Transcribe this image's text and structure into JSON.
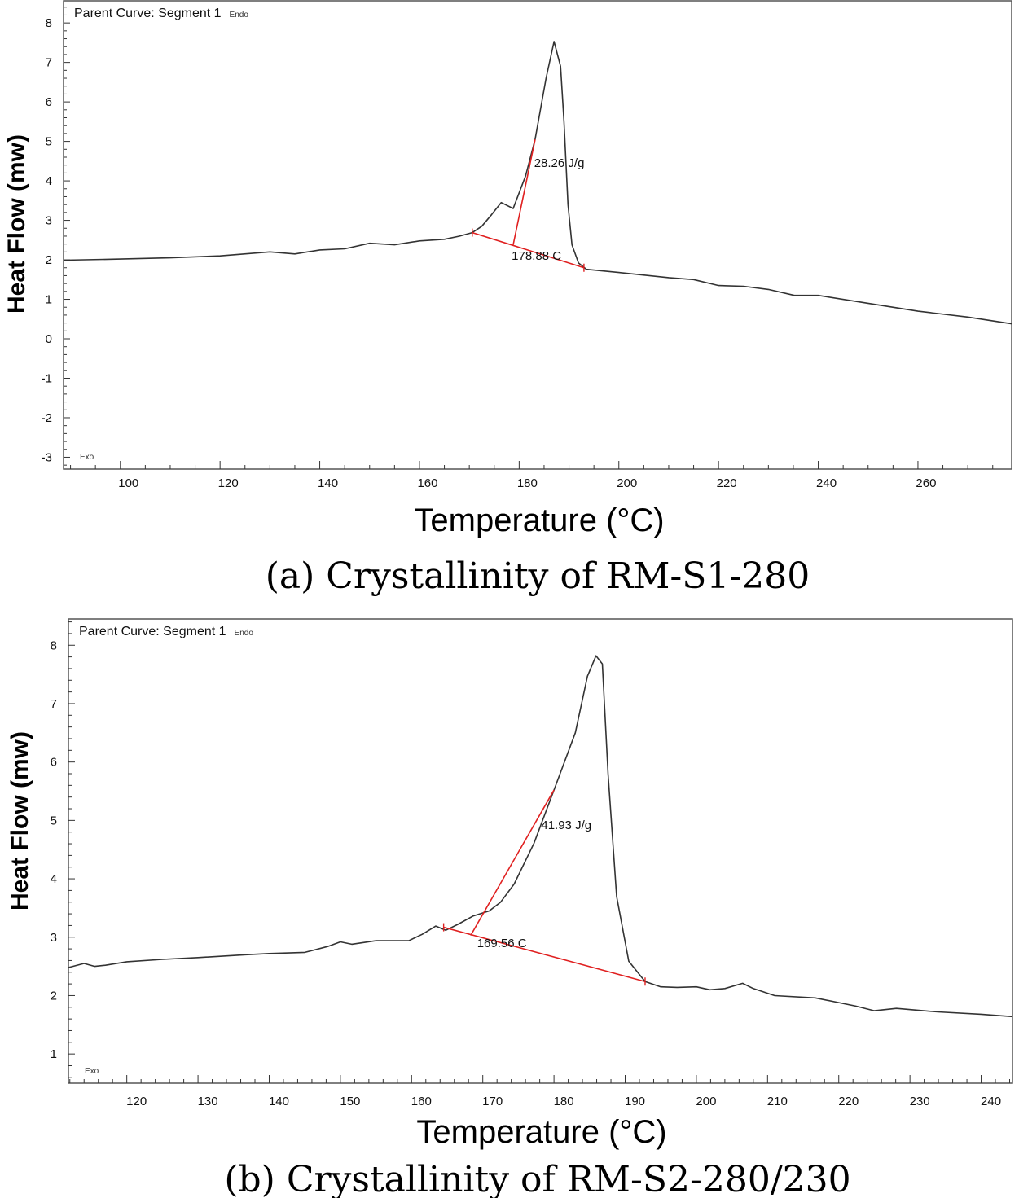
{
  "chart_data": [
    {
      "type": "line",
      "plot_title": "Parent Curve: Segment 1",
      "caption": "(a) Crystallinity of RM-S1-280",
      "xlabel": "Temperature (°C)",
      "ylabel": "Heat Flow (mw)",
      "xlim": [
        88.6,
        278.8
      ],
      "ylim": [
        -3.3,
        8.56
      ],
      "xticks": [
        100,
        120,
        140,
        160,
        180,
        200,
        220,
        240,
        260
      ],
      "yticks": [
        8,
        7,
        6,
        5,
        4,
        3,
        2,
        1,
        0,
        -1,
        -2,
        -3
      ],
      "endo_label": "Endo",
      "exo_label": "Exo",
      "series": [
        {
          "name": "Heat flow",
          "color": "#333333",
          "x": [
            88.6,
            100,
            110,
            120,
            130,
            135,
            140,
            145,
            150,
            155,
            160,
            165,
            168,
            170.6,
            172.5,
            174.5,
            176.4,
            178.8,
            181.3,
            183.2,
            185.4,
            187.0,
            188.3,
            189.0,
            189.8,
            190.6,
            191.9,
            193.5,
            200,
            210,
            215,
            220,
            225,
            230,
            235.2,
            240,
            250,
            260,
            270,
            278.8
          ],
          "y": [
            1.99,
            2.02,
            2.05,
            2.1,
            2.2,
            2.15,
            2.25,
            2.28,
            2.42,
            2.38,
            2.48,
            2.52,
            2.6,
            2.69,
            2.85,
            3.15,
            3.45,
            3.3,
            4.13,
            5.05,
            6.6,
            7.53,
            6.9,
            5.5,
            3.4,
            2.38,
            1.92,
            1.76,
            1.68,
            1.55,
            1.5,
            1.35,
            1.33,
            1.25,
            1.1,
            1.1,
            0.9,
            0.7,
            0.55,
            0.38
          ]
        }
      ],
      "baseline": {
        "x": [
          170.6,
          193.0
        ],
        "y": [
          2.69,
          1.8
        ],
        "color": "#e02020"
      },
      "tangent": {
        "x": [
          178.8,
          183.2
        ],
        "y": [
          2.38,
          5.05
        ],
        "color": "#e02020"
      },
      "annotations": [
        {
          "text": "28.26 J/g",
          "x": 183.0,
          "y": 4.35
        },
        {
          "text": "178.88 C",
          "x": 178.5,
          "y": 2.0
        }
      ]
    },
    {
      "type": "line",
      "plot_title": "Parent Curve: Segment 1",
      "caption": "(b) Crystallinity of RM-S2-280/230",
      "xlabel": "Temperature (°C)",
      "ylabel": "Heat Flow (mw)",
      "xlim": [
        111.8,
        244.4
      ],
      "ylim": [
        0.5,
        8.45
      ],
      "xticks": [
        120,
        130,
        140,
        150,
        160,
        170,
        180,
        190,
        200,
        210,
        220,
        230,
        240
      ],
      "yticks": [
        8,
        7,
        6,
        5,
        4,
        3,
        2,
        1
      ],
      "endo_label": "Endo",
      "exo_label": "Exo",
      "series": [
        {
          "name": "Heat flow",
          "color": "#333333",
          "x": [
            111.8,
            114,
            115.5,
            117,
            120,
            125,
            130,
            136.7,
            140,
            145,
            148.2,
            150,
            151.6,
            155,
            159.6,
            161.5,
            163.4,
            164.8,
            166.5,
            168.6,
            170.9,
            172.5,
            174.4,
            177.2,
            180,
            183,
            184.7,
            185.9,
            186.8,
            187.6,
            188.8,
            190.5,
            192.8,
            195,
            197.3,
            200,
            201.9,
            204,
            206.5,
            208,
            211,
            216.7,
            222.4,
            225,
            228.1,
            233.9,
            240,
            244.4
          ],
          "y": [
            2.48,
            2.55,
            2.5,
            2.52,
            2.58,
            2.62,
            2.65,
            2.7,
            2.72,
            2.74,
            2.84,
            2.92,
            2.88,
            2.94,
            2.94,
            3.05,
            3.19,
            3.12,
            3.22,
            3.36,
            3.45,
            3.6,
            3.91,
            4.61,
            5.52,
            6.5,
            7.47,
            7.82,
            7.68,
            5.8,
            3.7,
            2.59,
            2.24,
            2.15,
            2.14,
            2.15,
            2.1,
            2.12,
            2.21,
            2.12,
            2.0,
            1.96,
            1.82,
            1.74,
            1.78,
            1.72,
            1.68,
            1.64
          ]
        }
      ],
      "baseline": {
        "x": [
          164.5,
          192.8
        ],
        "y": [
          3.17,
          2.24
        ],
        "color": "#e02020"
      },
      "tangent": {
        "x": [
          168.3,
          180.0
        ],
        "y": [
          3.03,
          5.52
        ],
        "color": "#e02020"
      },
      "annotations": [
        {
          "text": "41.93 J/g",
          "x": 178.2,
          "y": 4.85
        },
        {
          "text": "169.56 C",
          "x": 169.2,
          "y": 2.83
        }
      ]
    }
  ]
}
